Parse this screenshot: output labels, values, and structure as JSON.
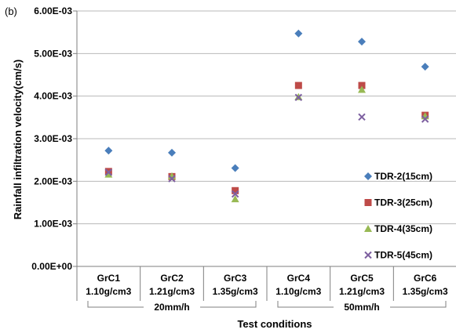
{
  "chart_data": {
    "type": "scatter",
    "panel_label": "(b)",
    "ylabel": "Rainfall infiltration velocity(cm/s)",
    "xlabel": "Test conditions",
    "ylim": [
      0,
      0.006
    ],
    "yticks": [
      0,
      0.001,
      0.002,
      0.003,
      0.004,
      0.005,
      0.006
    ],
    "ytick_labels": [
      "0.00E+00",
      "1.00E-03",
      "2.00E-03",
      "3.00E-03",
      "4.00E-03",
      "5.00E-03",
      "6.00E-03"
    ],
    "grid": true,
    "legend_position": "right",
    "categories": [
      {
        "name": "GrC1",
        "density": "1.10g/cm3"
      },
      {
        "name": "GrC2",
        "density": "1.21g/cm3"
      },
      {
        "name": "GrC3",
        "density": "1.35g/cm3"
      },
      {
        "name": "GrC4",
        "density": "1.10g/cm3"
      },
      {
        "name": "GrC5",
        "density": "1.21g/cm3"
      },
      {
        "name": "GrC6",
        "density": "1.35g/cm3"
      }
    ],
    "groups": [
      {
        "label": "20mm/h",
        "from": 0,
        "to": 2
      },
      {
        "label": "50mm/h",
        "from": 3,
        "to": 5
      }
    ],
    "series": [
      {
        "name": "TDR-2(15cm)",
        "marker": "diamond",
        "color": "#4a7ebb",
        "values": [
          0.00272,
          0.00267,
          0.00231,
          0.00547,
          0.00528,
          0.00469
        ]
      },
      {
        "name": "TDR-3(25cm)",
        "marker": "square",
        "color": "#be4b48",
        "values": [
          0.00223,
          0.00211,
          0.00178,
          0.00425,
          0.00425,
          0.00355
        ]
      },
      {
        "name": "TDR-4(35cm)",
        "marker": "triangle",
        "color": "#98b954",
        "values": [
          0.00216,
          0.00212,
          0.00158,
          0.00398,
          0.00415,
          0.00353
        ]
      },
      {
        "name": "TDR-5(45cm)",
        "marker": "cross",
        "color": "#7d60a0",
        "values": [
          0.00221,
          0.00206,
          0.0017,
          0.00397,
          0.00351,
          0.00346
        ]
      }
    ]
  }
}
